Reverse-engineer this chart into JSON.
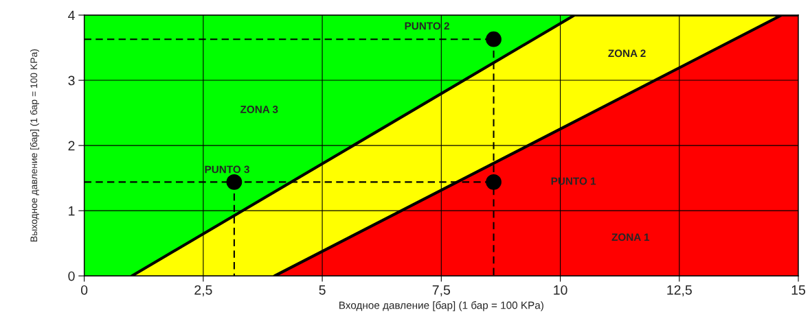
{
  "chart_data": {
    "type": "area",
    "xlabel": "Входное давление [бар] (1 бар = 100 KPa)",
    "ylabel": "Выходное давление [бар] (1 бар = 100 KPa)",
    "series": [
      {
        "color": "#00ff00",
        "x": [
          0,
          15
        ],
        "values": [
          4,
          4
        ]
      },
      {
        "color": "#ffff00",
        "line_style": "solid",
        "x": [
          1,
          10.3,
          15
        ],
        "values": [
          0,
          4,
          4
        ]
      },
      {
        "color": "#ff0000",
        "line_style": "solid",
        "x": [
          4,
          14.65,
          15
        ],
        "values": [
          0,
          4,
          4
        ]
      },
      {
        "type": "line",
        "color": "#000000",
        "line_style": "dashed",
        "x": [
          0,
          8.6
        ],
        "values": [
          3.63,
          3.63
        ]
      },
      {
        "type": "line",
        "color": "#000000",
        "line_style": "dashed",
        "x": [
          0,
          8.6
        ],
        "values": [
          1.44,
          1.44
        ]
      },
      {
        "type": "line",
        "color": "#000000",
        "line_style": "dashed",
        "x": [
          8.6,
          8.6
        ],
        "values": [
          3.63,
          0
        ]
      },
      {
        "type": "line",
        "color": "#000000",
        "line_style": "dashed",
        "x": [
          3.15,
          3.15
        ],
        "values": [
          1.44,
          0
        ]
      },
      {
        "type": "scatter",
        "color": "#000000",
        "marker": "circle",
        "x": [
          8.6,
          8.6,
          3.15
        ],
        "values": [
          1.44,
          3.63,
          1.44
        ]
      }
    ],
    "annotations": [
      "PUNTO 1",
      "PUNTO 2",
      "PUNTO 3",
      "ZONA 1",
      "ZONA 2",
      "ZONA 3"
    ],
    "xlim": [
      0,
      15
    ],
    "ylim": [
      0,
      4
    ],
    "xticks": [
      0,
      {
        "value": 2.5,
        "label": "2,5"
      },
      5,
      {
        "value": 7.5,
        "label": "7,5"
      },
      10,
      {
        "value": 12.5,
        "label": "12,5"
      },
      15
    ],
    "yticks": [
      0,
      1,
      2,
      3,
      4
    ],
    "grid": true
  }
}
